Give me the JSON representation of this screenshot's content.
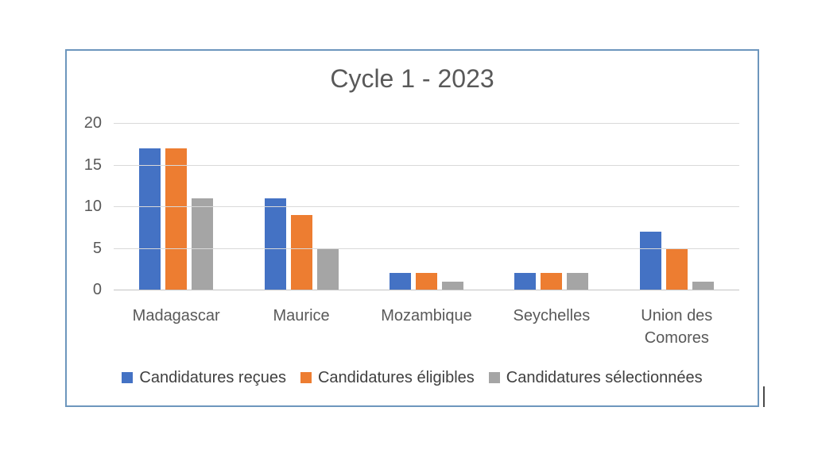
{
  "chart_data": {
    "type": "bar",
    "title": "Cycle 1 - 2023",
    "categories": [
      "Madagascar",
      "Maurice",
      "Mozambique",
      "Seychelles",
      "Union des Comores"
    ],
    "series": [
      {
        "name": "Candidatures reçues",
        "color": "#4472C4",
        "values": [
          17,
          11,
          2,
          2,
          7
        ]
      },
      {
        "name": "Candidatures éligibles",
        "color": "#ED7D31",
        "values": [
          17,
          9,
          2,
          2,
          5
        ]
      },
      {
        "name": "Candidatures sélectionnées",
        "color": "#A5A5A5",
        "values": [
          11,
          5,
          1,
          2,
          1
        ]
      }
    ],
    "xlabel": "",
    "ylabel": "",
    "ylim": [
      0,
      20
    ],
    "yticks": [
      20,
      15,
      10,
      5,
      0
    ],
    "grid": true,
    "legend_position": "bottom"
  },
  "colors": {
    "frame_border": "#6d96bd",
    "gridline": "#d9d9d9",
    "baseline": "#c3c3c3",
    "axis_text": "#595959",
    "title_text": "#595959",
    "legend_text": "#404040"
  }
}
